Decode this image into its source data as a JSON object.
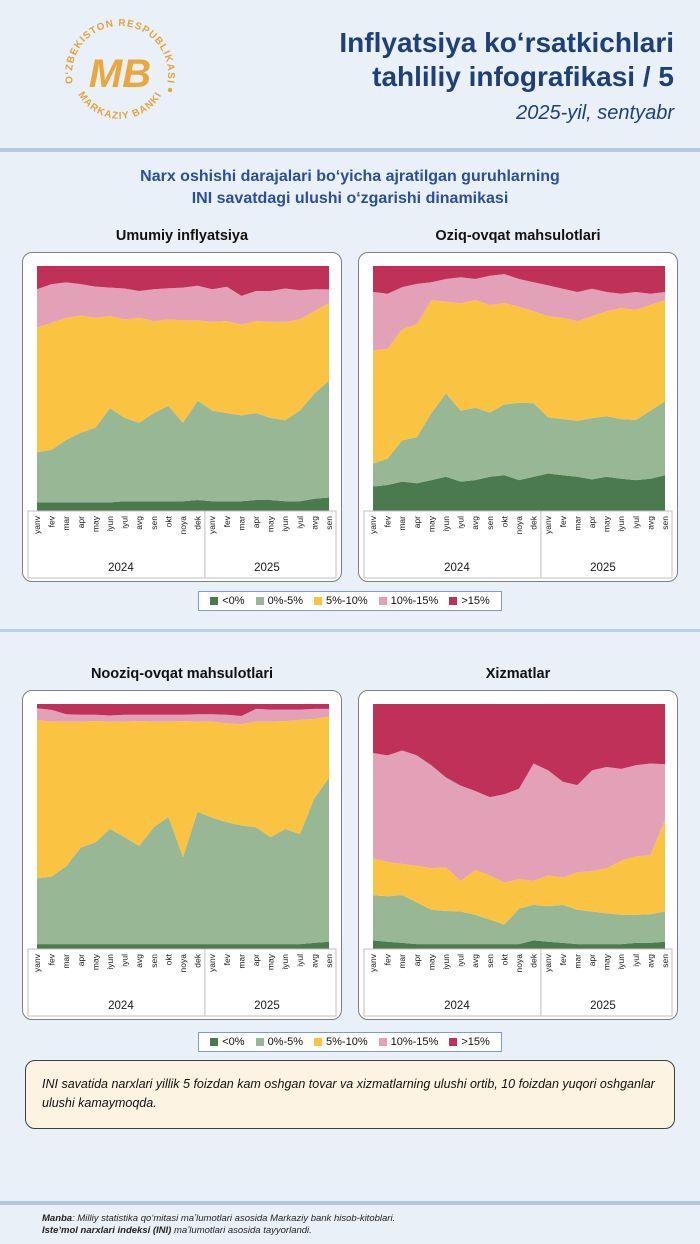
{
  "header": {
    "logo": {
      "top_text": "OʻZBEKISTON RESPUBLIKASI",
      "bottom_text": "MARKAZIY BANKI",
      "monogram": "MB",
      "color": "#E5A33D"
    },
    "title_line1": "Inflyatsiya koʻrsatkichlari",
    "title_line2": "tahliliy infografikasi / 5",
    "subtitle": "2025-yil, sentyabr"
  },
  "section": {
    "heading_line1": "Narx oshishi darajalari boʻyicha ajratilgan guruhlarning",
    "heading_line2": "INI savatdagi ulushi oʻzgarishi dinamikasi"
  },
  "legend": {
    "items": [
      {
        "label": "<0%",
        "color": "#4C7A4F"
      },
      {
        "label": "0%-5%",
        "color": "#97B795"
      },
      {
        "label": "5%-10%",
        "color": "#FBC342"
      },
      {
        "label": "10%-15%",
        "color": "#E2A1B6"
      },
      {
        "label": ">15%",
        "color": "#C0315A"
      }
    ]
  },
  "chart_data": [
    {
      "type": "area",
      "stacked": true,
      "title": "Umumiy inflyatsiya",
      "unit": "%",
      "ylim": [
        0,
        100
      ],
      "categories": [
        "yanv",
        "fev",
        "mar",
        "apr",
        "may",
        "iyun",
        "iyul",
        "avg",
        "sen",
        "okt",
        "noya",
        "dek",
        "yanv",
        "fev",
        "mar",
        "apr",
        "may",
        "iyun",
        "iyul",
        "avg",
        "sen"
      ],
      "year_groups": [
        {
          "label": "2024",
          "months": 12
        },
        {
          "label": "2025",
          "months": 9
        }
      ],
      "series": [
        {
          "name": "<0%",
          "values": [
            3.5,
            3.5,
            3.5,
            3.5,
            3.5,
            3.5,
            4,
            4,
            4,
            4,
            4,
            4.5,
            4,
            4,
            4,
            4.5,
            4.5,
            4,
            4,
            5,
            5.5
          ]
        },
        {
          "name": "0%-5%",
          "values": [
            20.5,
            21.5,
            25.5,
            28.5,
            30.5,
            38.5,
            34,
            32,
            36,
            39,
            32,
            40.5,
            37,
            36,
            35,
            35.5,
            33.5,
            33,
            37,
            43,
            47.5
          ]
        },
        {
          "name": "5%-10%",
          "values": [
            50.8,
            51.8,
            49.9,
            47.8,
            44.9,
            37.6,
            40.2,
            42.9,
            37.5,
            35.2,
            41.8,
            32.8,
            36.2,
            37.5,
            37.1,
            37.5,
            39.2,
            40.2,
            37.2,
            33.6,
            31.5
          ]
        },
        {
          "name": "10%-15%",
          "values": [
            15.7,
            15.8,
            14.4,
            12.8,
            12.7,
            11.6,
            12.6,
            10.9,
            13,
            12.7,
            13.4,
            14.1,
            13.3,
            14,
            11.7,
            12.3,
            12.6,
            13.6,
            11.9,
            8.9,
            5.5
          ]
        },
        {
          "name": ">15%",
          "values": [
            9.5,
            7.4,
            6.7,
            7.4,
            8.4,
            8.8,
            9.2,
            10.2,
            9.5,
            9.1,
            8.8,
            8.1,
            9.5,
            8.5,
            12.2,
            10.2,
            10.2,
            9.2,
            9.9,
            9.5,
            9.5
          ]
        }
      ]
    },
    {
      "type": "area",
      "stacked": true,
      "title": "Oziq-ovqat mahsulotlari",
      "unit": "%",
      "ylim": [
        0,
        100
      ],
      "categories": [
        "yanv",
        "fev",
        "mar",
        "apr",
        "may",
        "iyun",
        "iyul",
        "avg",
        "sen",
        "okt",
        "noya",
        "dek",
        "yanv",
        "fev",
        "mar",
        "apr",
        "may",
        "iyun",
        "iyul",
        "avg",
        "sen"
      ],
      "year_groups": [
        {
          "label": "2024",
          "months": 12
        },
        {
          "label": "2025",
          "months": 9
        }
      ],
      "series": [
        {
          "name": "<0%",
          "values": [
            10,
            10.6,
            12,
            11.3,
            12.6,
            14,
            12,
            12.6,
            14,
            14.6,
            12.6,
            14,
            15.3,
            14.6,
            14,
            12.9,
            14,
            13.2,
            12.6,
            13.2,
            14.6
          ]
        },
        {
          "name": "0%-5%",
          "values": [
            9.4,
            10.8,
            16.8,
            18.8,
            27.4,
            34,
            28.9,
            29.6,
            26.2,
            28.9,
            31.6,
            30,
            22.9,
            22.9,
            22.8,
            25,
            24.7,
            24.3,
            24.6,
            27.7,
            30.3
          ]
        },
        {
          "name": "5%-10%",
          "values": [
            46.2,
            44.8,
            45.4,
            46.1,
            46.1,
            37.4,
            43.9,
            43.9,
            43.9,
            41.3,
            39.2,
            37.5,
            41.3,
            41.3,
            40.7,
            41.6,
            42.8,
            45.3,
            44.9,
            43.2,
            41.2
          ]
        },
        {
          "name": "10%-15%",
          "values": [
            23.8,
            22.5,
            17.2,
            16.5,
            7.3,
            9.3,
            10.6,
            8.6,
            11.9,
            11.9,
            11.3,
            11.9,
            12.6,
            11.9,
            11.9,
            11.2,
            7.9,
            5.9,
            7.3,
            4.6,
            3.3
          ]
        },
        {
          "name": ">15%",
          "values": [
            10.6,
            11.3,
            8.6,
            7.3,
            6.6,
            5.3,
            4.6,
            5.3,
            4,
            3.3,
            5.3,
            6.6,
            7.9,
            9.3,
            10.6,
            9.3,
            10.6,
            11.3,
            10.6,
            11.3,
            10.6
          ]
        }
      ]
    },
    {
      "type": "area",
      "stacked": true,
      "title": "Nooziq-ovqat mahsulotlari",
      "unit": "%",
      "ylim": [
        0,
        100
      ],
      "categories": [
        "yanv",
        "fev",
        "mar",
        "apr",
        "may",
        "iyun",
        "iyul",
        "avg",
        "sen",
        "okt",
        "noya",
        "dek",
        "yanv",
        "fev",
        "mar",
        "apr",
        "may",
        "iyun",
        "iyul",
        "avg",
        "sen"
      ],
      "year_groups": [
        {
          "label": "2024",
          "months": 12
        },
        {
          "label": "2025",
          "months": 9
        }
      ],
      "series": [
        {
          "name": "<0%",
          "values": [
            2,
            2,
            2,
            2,
            2,
            2,
            2,
            2,
            2,
            2,
            2,
            2,
            2,
            2,
            2,
            2,
            2,
            2,
            2,
            2.5,
            3
          ]
        },
        {
          "name": "0%-5%",
          "values": [
            26.9,
            27.6,
            31.8,
            39.4,
            41.5,
            47,
            43.6,
            40.1,
            47.7,
            51.9,
            35.5,
            54,
            51.6,
            49.8,
            48.4,
            47.7,
            43.6,
            47,
            44.9,
            59,
            66.9
          ]
        },
        {
          "name": "5%-10%",
          "values": [
            64.6,
            63.2,
            59,
            51.4,
            49.5,
            43.8,
            47.2,
            50.9,
            43.1,
            38.9,
            55.5,
            36.8,
            39.2,
            40.3,
            41.3,
            43.1,
            47.2,
            44,
            46.6,
            32.4,
            25
          ]
        },
        {
          "name": "10%-15%",
          "values": [
            4.8,
            4.8,
            3,
            2.8,
            2.6,
            2.5,
            2.8,
            2.6,
            2.8,
            2.8,
            2.6,
            3,
            3,
            3.5,
            3.4,
            5.2,
            4.9,
            4.7,
            4.2,
            4.1,
            3.1
          ]
        },
        {
          "name": ">15%",
          "values": [
            1.7,
            2.4,
            4.2,
            4.4,
            4.4,
            4.7,
            4.4,
            4.4,
            4.4,
            4.4,
            4.4,
            4.2,
            4.2,
            4.4,
            4.9,
            2,
            2.3,
            2.3,
            2.3,
            2,
            2
          ]
        }
      ]
    },
    {
      "type": "area",
      "stacked": true,
      "title": "Xizmatlar",
      "unit": "%",
      "ylim": [
        0,
        100
      ],
      "categories": [
        "yanv",
        "fev",
        "mar",
        "apr",
        "may",
        "iyun",
        "iyul",
        "avg",
        "sen",
        "okt",
        "noya",
        "dek",
        "yanv",
        "fev",
        "mar",
        "apr",
        "may",
        "iyun",
        "iyul",
        "avg",
        "sen"
      ],
      "year_groups": [
        {
          "label": "2024",
          "months": 12
        },
        {
          "label": "2025",
          "months": 9
        }
      ],
      "series": [
        {
          "name": "<0%",
          "values": [
            3.5,
            3,
            2.5,
            2,
            2,
            2,
            2,
            2,
            2,
            2,
            2,
            3.5,
            3,
            2.5,
            2,
            2,
            2,
            2,
            2.5,
            2.5,
            3
          ]
        },
        {
          "name": "0%-5%",
          "values": [
            18.5,
            18.5,
            19.5,
            17,
            14,
            13.5,
            13.3,
            12,
            10,
            8,
            14.5,
            14.5,
            14.5,
            15.5,
            14,
            13.3,
            12.6,
            12,
            11.5,
            11.7,
            12.3
          ]
        },
        {
          "name": "5%-10%",
          "values": [
            15,
            14,
            12.7,
            15,
            17,
            17.8,
            12.5,
            18.2,
            18,
            17.1,
            12,
            9.8,
            12.5,
            11.2,
            15.3,
            16.4,
            18.4,
            22,
            23.8,
            24,
            37.5
          ]
        },
        {
          "name": "10%-15%",
          "values": [
            43,
            43.5,
            46.3,
            45,
            42,
            36.7,
            38.9,
            32.3,
            32,
            36.1,
            36.9,
            47.9,
            42.9,
            39.1,
            35.6,
            41.2,
            41.3,
            37.5,
            37.2,
            37.5,
            22.6
          ]
        },
        {
          "name": ">15%",
          "values": [
            20,
            21,
            19,
            21,
            25,
            30,
            33.3,
            35.5,
            38,
            36.8,
            34.6,
            24.3,
            27.1,
            31.7,
            33.1,
            27.1,
            25.7,
            26.5,
            25,
            24.3,
            24.6
          ]
        }
      ]
    }
  ],
  "note": {
    "text": "INI savatida narxlari yillik 5 foizdan kam oshgan tovar va xizmatlarning ulushi ortib, 10 foizdan yuqori oshganlar ulushi kamaymoqda."
  },
  "footer": {
    "line1_bold": "Manba",
    "line1_rest": ": Milliy statistika qoʻmitasi maʼlumotlari asosida Markaziy bank hisob-kitoblari.",
    "line2_bold": "Isteʼmol narxlari indeksi (INI)",
    "line2_rest": " maʼlumotlari asosida tayyorlandi."
  },
  "colors": {
    "page_background": "#EAF0F8",
    "divider": "#B5C9E0",
    "title_blue": "#1E4077",
    "heading_blue": "#2B4F9A",
    "panel_border": "#7F7F7F",
    "axis_lines": "#BFBFBF",
    "legend_border": "#7E9CC8",
    "note_background": "#FCF3E3",
    "note_border": "#3F3F3F",
    "logo_gold": "#E5A33D"
  }
}
